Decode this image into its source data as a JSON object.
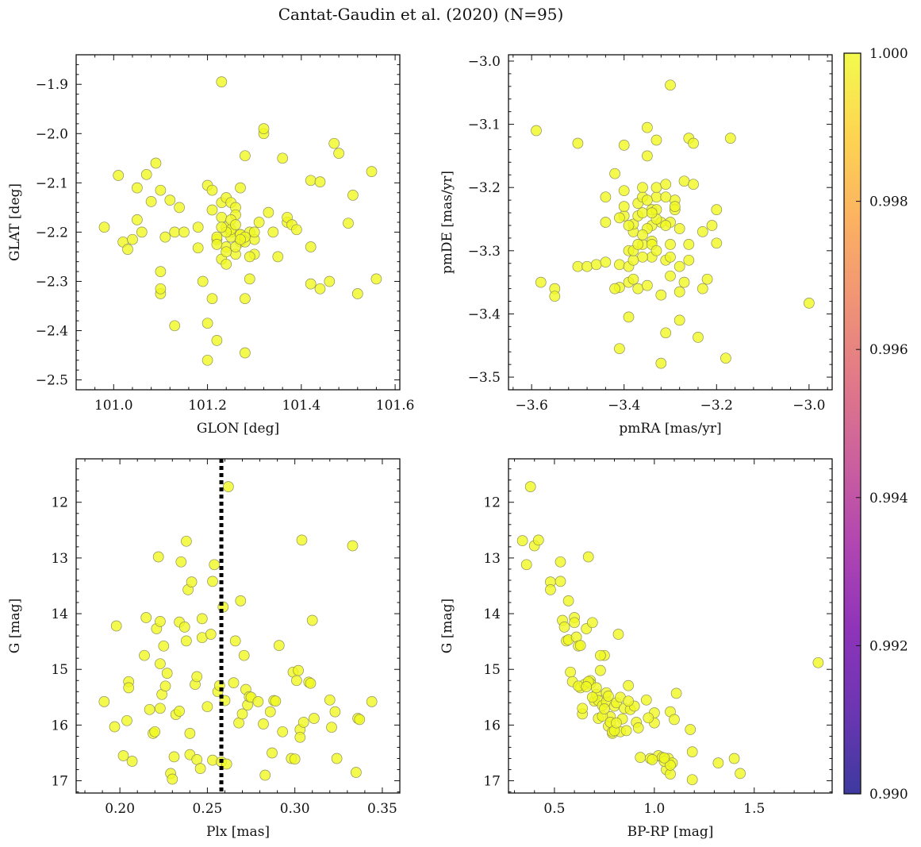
{
  "figure": {
    "title": "Cantat-Gaudin et al. (2020) (N=95)"
  },
  "colors": {
    "marker_fill": "#f0f921",
    "marker_edge": "#8f8f5a",
    "plx_line": "#000000",
    "colormap": [
      "#0d0887",
      "#46039f",
      "#7201a8",
      "#9c179e",
      "#bd3786",
      "#d8576b",
      "#ed7953",
      "#fb9f3a",
      "#fdca26",
      "#f0f921"
    ]
  },
  "chart_data": [
    {
      "type": "scatter",
      "name": "sky-position",
      "xlabel": "GLON [deg]",
      "ylabel": "GLAT [deg]",
      "xlim": [
        100.92,
        101.61
      ],
      "ylim": [
        -2.52,
        -1.84
      ],
      "xticks": [
        101.0,
        101.2,
        101.4,
        101.6
      ],
      "xtick_labels": [
        "101.0",
        "101.2",
        "101.4",
        "101.6"
      ],
      "yticks": [
        -2.5,
        -2.4,
        -2.3,
        -2.2,
        -2.1,
        -2.0,
        -1.9
      ],
      "ytick_labels": [
        "−2.5",
        "−2.4",
        "−2.3",
        "−2.2",
        "−2.1",
        "−2.0",
        "−1.9"
      ],
      "x": [
        100.98,
        101.01,
        101.02,
        101.03,
        101.04,
        101.05,
        101.05,
        101.06,
        101.07,
        101.08,
        101.09,
        101.1,
        101.1,
        101.1,
        101.1,
        101.11,
        101.12,
        101.13,
        101.13,
        101.14,
        101.15,
        101.18,
        101.18,
        101.19,
        101.2,
        101.2,
        101.2,
        101.21,
        101.21,
        101.21,
        101.22,
        101.22,
        101.23,
        101.23,
        101.23,
        101.24,
        101.24,
        101.24,
        101.25,
        101.25,
        101.25,
        101.26,
        101.26,
        101.27,
        101.27,
        101.27,
        101.28,
        101.28,
        101.28,
        101.29,
        101.29,
        101.3,
        101.3,
        101.31,
        101.32,
        101.32,
        101.33,
        101.34,
        101.35,
        101.36,
        101.37,
        101.37,
        101.38,
        101.39,
        101.42,
        101.42,
        101.42,
        101.44,
        101.44,
        101.46,
        101.47,
        101.48,
        101.5,
        101.51,
        101.52,
        101.55,
        101.56,
        101.22,
        101.23,
        101.24,
        101.25,
        101.26,
        101.27,
        101.28,
        101.29,
        101.24,
        101.26,
        101.28,
        101.23,
        101.25,
        101.24,
        101.26,
        101.27,
        101.3,
        101.22
      ],
      "y": [
        -2.19,
        -2.085,
        -2.22,
        -2.235,
        -2.215,
        -2.11,
        -2.175,
        -2.2,
        -2.083,
        -2.138,
        -2.06,
        -2.28,
        -2.325,
        -2.315,
        -2.115,
        -2.21,
        -2.135,
        -2.39,
        -2.2,
        -2.15,
        -2.2,
        -2.19,
        -2.232,
        -2.3,
        -2.105,
        -2.385,
        -2.46,
        -2.335,
        -2.155,
        -2.115,
        -2.42,
        -2.215,
        -1.895,
        -2.14,
        -2.255,
        -2.265,
        -2.19,
        -2.13,
        -2.2,
        -2.21,
        -2.14,
        -2.245,
        -2.15,
        -2.205,
        -2.22,
        -2.11,
        -2.445,
        -2.335,
        -2.045,
        -2.2,
        -2.295,
        -2.215,
        -2.245,
        -2.18,
        -2.0,
        -1.99,
        -2.16,
        -2.2,
        -2.25,
        -2.05,
        -2.18,
        -2.17,
        -2.185,
        -2.195,
        -2.23,
        -2.095,
        -2.305,
        -2.315,
        -2.098,
        -2.3,
        -2.02,
        -2.04,
        -2.182,
        -2.125,
        -2.325,
        -2.077,
        -2.295,
        -2.21,
        -2.17,
        -2.23,
        -2.195,
        -2.165,
        -2.205,
        -2.22,
        -2.25,
        -2.2,
        -2.23,
        -2.21,
        -2.19,
        -2.175,
        -2.24,
        -2.185,
        -2.215,
        -2.2,
        -2.225
      ]
    },
    {
      "type": "scatter",
      "name": "proper-motion",
      "xlabel": "pmRA [mas/yr]",
      "ylabel": "pmDE [mas/yr]",
      "xlim": [
        -3.65,
        -2.95
      ],
      "ylim": [
        -3.52,
        -2.99
      ],
      "xticks": [
        -3.6,
        -3.4,
        -3.2,
        -3.0
      ],
      "xtick_labels": [
        "−3.6",
        "−3.4",
        "−3.2",
        "−3.0"
      ],
      "yticks": [
        -3.5,
        -3.4,
        -3.3,
        -3.2,
        -3.1,
        -3.0
      ],
      "ytick_labels": [
        "−3.5",
        "−3.4",
        "−3.3",
        "−3.2",
        "−3.1",
        "−3.0"
      ],
      "x": [
        -3.59,
        -3.58,
        -3.55,
        -3.55,
        -3.5,
        -3.5,
        -3.48,
        -3.46,
        -3.44,
        -3.44,
        -3.44,
        -3.42,
        -3.41,
        -3.41,
        -3.41,
        -3.4,
        -3.4,
        -3.4,
        -3.39,
        -3.39,
        -3.39,
        -3.38,
        -3.38,
        -3.38,
        -3.37,
        -3.37,
        -3.36,
        -3.36,
        -3.36,
        -3.35,
        -3.35,
        -3.35,
        -3.34,
        -3.34,
        -3.34,
        -3.33,
        -3.33,
        -3.33,
        -3.32,
        -3.32,
        -3.31,
        -3.31,
        -3.31,
        -3.3,
        -3.3,
        -3.3,
        -3.29,
        -3.29,
        -3.28,
        -3.28,
        -3.28,
        -3.27,
        -3.26,
        -3.26,
        -3.26,
        -3.25,
        -3.24,
        -3.23,
        -3.23,
        -3.22,
        -3.21,
        -3.2,
        -3.2,
        -3.18,
        -3.17,
        -3.0,
        -3.41,
        -3.39,
        -3.37,
        -3.36,
        -3.35,
        -3.34,
        -3.33,
        -3.32,
        -3.31,
        -3.3,
        -3.38,
        -3.36,
        -3.34,
        -3.33,
        -3.4,
        -3.29,
        -3.38,
        -3.35,
        -3.31,
        -3.27,
        -3.36,
        -3.3,
        -3.39,
        -3.33,
        -3.28,
        -3.34,
        -3.42,
        -3.25,
        -3.37
      ],
      "y": [
        -3.11,
        -3.35,
        -3.36,
        -3.372,
        -3.13,
        -3.325,
        -3.325,
        -3.322,
        -3.215,
        -3.255,
        -3.318,
        -3.178,
        -3.455,
        -3.322,
        -3.358,
        -3.133,
        -3.205,
        -3.245,
        -3.405,
        -3.35,
        -3.325,
        -3.27,
        -3.258,
        -3.345,
        -3.36,
        -3.225,
        -3.215,
        -3.2,
        -3.29,
        -3.105,
        -3.15,
        -3.355,
        -3.235,
        -3.31,
        -3.26,
        -3.125,
        -3.215,
        -3.2,
        -3.478,
        -3.37,
        -3.43,
        -3.195,
        -3.315,
        -3.038,
        -3.255,
        -3.31,
        -3.22,
        -3.235,
        -3.265,
        -3.365,
        -3.325,
        -3.19,
        -3.122,
        -3.29,
        -3.315,
        -3.195,
        -3.437,
        -3.36,
        -3.27,
        -3.345,
        -3.26,
        -3.235,
        -3.288,
        -3.47,
        -3.122,
        -3.383,
        -3.248,
        -3.3,
        -3.245,
        -3.31,
        -3.265,
        -3.285,
        -3.235,
        -3.255,
        -3.215,
        -3.34,
        -3.315,
        -3.275,
        -3.29,
        -3.25,
        -3.23,
        -3.23,
        -3.3,
        -3.22,
        -3.26,
        -3.35,
        -3.24,
        -3.29,
        -3.26,
        -3.3,
        -3.41,
        -3.24,
        -3.36,
        -3.13,
        -3.29
      ]
    },
    {
      "type": "scatter",
      "name": "parallax-magnitude",
      "xlabel": "Plx [mas]",
      "ylabel": "G [mag]",
      "xlim": [
        0.175,
        0.36
      ],
      "ylim": [
        17.22,
        11.22
      ],
      "xticks": [
        0.2,
        0.25,
        0.3,
        0.35
      ],
      "xtick_labels": [
        "0.20",
        "0.25",
        "0.30",
        "0.35"
      ],
      "yticks": [
        12,
        13,
        14,
        15,
        16,
        17
      ],
      "ytick_labels": [
        "12",
        "13",
        "14",
        "15",
        "16",
        "17"
      ],
      "vline": {
        "x": 0.258,
        "style": "dotted"
      },
      "x": [
        0.191,
        0.197,
        0.198,
        0.202,
        0.204,
        0.205,
        0.205,
        0.207,
        0.214,
        0.215,
        0.217,
        0.219,
        0.22,
        0.221,
        0.222,
        0.223,
        0.223,
        0.223,
        0.224,
        0.225,
        0.226,
        0.227,
        0.229,
        0.23,
        0.231,
        0.232,
        0.234,
        0.234,
        0.235,
        0.237,
        0.238,
        0.238,
        0.239,
        0.24,
        0.24,
        0.241,
        0.243,
        0.244,
        0.244,
        0.246,
        0.247,
        0.247,
        0.25,
        0.252,
        0.253,
        0.253,
        0.254,
        0.256,
        0.257,
        0.258,
        0.259,
        0.26,
        0.261,
        0.262,
        0.265,
        0.266,
        0.268,
        0.269,
        0.27,
        0.271,
        0.272,
        0.273,
        0.274,
        0.275,
        0.279,
        0.282,
        0.283,
        0.286,
        0.287,
        0.288,
        0.289,
        0.291,
        0.293,
        0.298,
        0.299,
        0.3,
        0.301,
        0.302,
        0.303,
        0.303,
        0.304,
        0.305,
        0.308,
        0.309,
        0.31,
        0.311,
        0.32,
        0.321,
        0.323,
        0.324,
        0.333,
        0.335,
        0.336,
        0.337,
        0.344
      ],
      "y": [
        15.58,
        16.03,
        14.22,
        16.55,
        15.92,
        15.22,
        15.33,
        16.65,
        14.75,
        14.07,
        15.72,
        16.15,
        16.12,
        14.27,
        12.98,
        14.14,
        15.7,
        14.9,
        15.45,
        14.58,
        15.3,
        15.07,
        16.87,
        16.97,
        16.57,
        15.81,
        14.15,
        15.75,
        13.07,
        14.24,
        14.49,
        12.7,
        13.57,
        16.53,
        16.15,
        13.43,
        15.27,
        15.13,
        16.62,
        16.78,
        14.09,
        14.43,
        15.67,
        14.37,
        16.63,
        13.42,
        13.12,
        15.4,
        15.29,
        16.66,
        13.88,
        15.56,
        16.7,
        11.72,
        15.24,
        14.49,
        15.96,
        13.77,
        15.8,
        14.75,
        15.36,
        15.64,
        15.49,
        15.5,
        15.58,
        15.98,
        16.9,
        15.76,
        16.5,
        15.56,
        15.57,
        14.57,
        16.12,
        16.6,
        15.05,
        16.61,
        15.2,
        15.02,
        16.08,
        16.22,
        12.68,
        15.95,
        15.23,
        15.25,
        14.12,
        15.88,
        15.55,
        16.04,
        15.76,
        16.6,
        12.78,
        16.85,
        15.88,
        15.9,
        15.58
      ]
    },
    {
      "type": "scatter",
      "name": "color-magnitude",
      "xlabel": "BP-RP [mag]",
      "ylabel": "G [mag]",
      "xlim": [
        0.27,
        1.89
      ],
      "ylim": [
        17.22,
        11.22
      ],
      "xticks": [
        0.5,
        1.0,
        1.5
      ],
      "xtick_labels": [
        "0.5",
        "1.0",
        "1.5"
      ],
      "yticks": [
        12,
        13,
        14,
        15,
        16,
        17
      ],
      "ytick_labels": [
        "12",
        "13",
        "14",
        "15",
        "16",
        "17"
      ],
      "x": [
        0.34,
        0.36,
        0.38,
        0.4,
        0.42,
        0.48,
        0.48,
        0.53,
        0.53,
        0.54,
        0.55,
        0.56,
        0.57,
        0.57,
        0.58,
        0.59,
        0.6,
        0.6,
        0.61,
        0.62,
        0.63,
        0.63,
        0.64,
        0.64,
        0.65,
        0.66,
        0.67,
        0.68,
        0.68,
        0.69,
        0.7,
        0.71,
        0.72,
        0.72,
        0.73,
        0.74,
        0.75,
        0.76,
        0.76,
        0.77,
        0.78,
        0.79,
        0.79,
        0.8,
        0.81,
        0.82,
        0.83,
        0.83,
        0.85,
        0.86,
        0.87,
        0.88,
        0.91,
        0.92,
        0.93,
        0.96,
        0.98,
        1.0,
        1.0,
        1.02,
        1.04,
        1.06,
        1.07,
        1.08,
        1.09,
        1.1,
        1.11,
        1.18,
        1.19,
        1.19,
        1.32,
        1.4,
        1.43,
        1.82,
        1.05,
        1.08,
        0.67,
        0.74,
        0.78,
        0.71,
        0.62,
        0.77,
        0.9,
        0.84,
        0.97,
        1.08,
        0.73,
        0.66,
        0.8,
        0.69,
        0.99,
        0.81,
        1.05,
        0.75,
        0.87
      ],
      "y": [
        12.69,
        13.12,
        11.72,
        12.78,
        12.68,
        13.43,
        13.57,
        13.07,
        13.42,
        14.12,
        14.24,
        14.49,
        13.77,
        14.47,
        15.05,
        15.22,
        14.07,
        14.16,
        14.42,
        14.58,
        15.33,
        14.57,
        15.8,
        15.7,
        15.27,
        14.27,
        12.98,
        15.2,
        15.25,
        14.16,
        15.57,
        15.45,
        15.56,
        15.88,
        15.02,
        15.65,
        14.75,
        15.58,
        15.42,
        16.02,
        15.85,
        16.15,
        16.12,
        15.66,
        15.6,
        14.37,
        16.12,
        15.5,
        15.7,
        16.1,
        15.29,
        15.72,
        15.95,
        16.05,
        16.58,
        15.55,
        16.6,
        15.96,
        15.78,
        16.55,
        16.58,
        16.8,
        16.6,
        15.76,
        16.68,
        15.9,
        15.43,
        16.08,
        16.98,
        16.48,
        16.68,
        16.6,
        16.87,
        14.88,
        16.65,
        16.88,
        15.22,
        15.84,
        15.95,
        15.33,
        15.3,
        15.48,
        15.66,
        15.89,
        15.87,
        16.72,
        14.75,
        15.31,
        16.1,
        15.5,
        16.62,
        15.96,
        16.59,
        15.71,
        15.57
      ]
    },
    {
      "type": "colorbar",
      "name": "membership-probability",
      "range": [
        0.99,
        1.0
      ],
      "ticks": [
        0.99,
        0.992,
        0.994,
        0.996,
        0.998,
        1.0
      ],
      "tick_labels": [
        "0.990",
        "0.992",
        "0.994",
        "0.996",
        "0.998",
        "1.000"
      ]
    }
  ]
}
